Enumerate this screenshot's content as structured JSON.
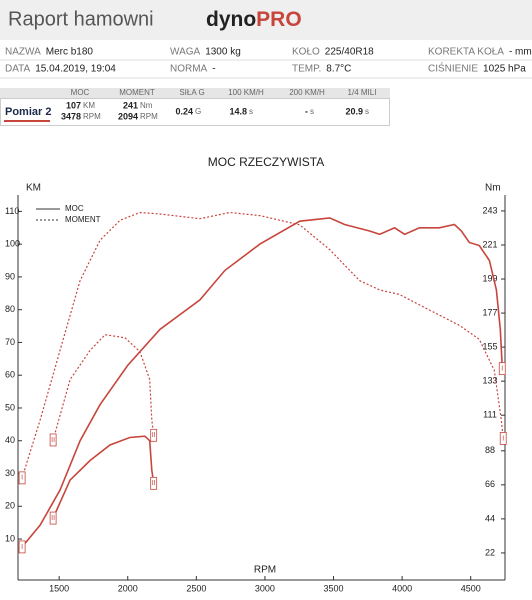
{
  "header": {
    "title": "Raport hamowni",
    "brand_a": "dyno",
    "brand_b": "PRO"
  },
  "info": {
    "rows": [
      [
        {
          "label": "NAZWA",
          "value": "Merc b180"
        },
        {
          "label": "WAGA",
          "value": "1300 kg"
        },
        {
          "label": "KOŁO",
          "value": "225/40R18"
        },
        {
          "label": "KOREKTA KOŁA",
          "value": "- mm"
        }
      ],
      [
        {
          "label": "DATA",
          "value": "15.04.2019, 19:04"
        },
        {
          "label": "NORMA",
          "value": "-"
        },
        {
          "label": "TEMP.",
          "value": "8.7°C"
        },
        {
          "label": "CIŚNIENIE",
          "value": "1025 hPa"
        }
      ]
    ]
  },
  "results": {
    "columns": [
      "MOC",
      "MOMENT",
      "SIŁA G",
      "100 KM/H",
      "200 KM/H",
      "1/4 MILI"
    ],
    "rows": [
      {
        "name": "Pomiar 2",
        "cells": [
          [
            {
              "v": "107",
              "u": "KM"
            },
            {
              "v": "3478",
              "u": "RPM"
            }
          ],
          [
            {
              "v": "241",
              "u": "Nm"
            },
            {
              "v": "2094",
              "u": "RPM"
            }
          ],
          [
            {
              "v": "0.24",
              "u": "G"
            }
          ],
          [
            {
              "v": "14.8",
              "u": "s"
            }
          ],
          [
            {
              "v": "-",
              "u": "s"
            }
          ],
          [
            {
              "v": "20.9",
              "u": "s"
            }
          ]
        ]
      }
    ]
  },
  "chart_data": {
    "type": "line",
    "title": "MOC RZECZYWISTA",
    "x_label": "RPM",
    "y_label": "KM",
    "y2_label": "Nm",
    "xlim": [
      1200,
      4750
    ],
    "xticks": [
      1500,
      2000,
      2500,
      3000,
      3500,
      4000,
      4500
    ],
    "ylim": [
      -2.5,
      115
    ],
    "yticks": [
      10,
      20,
      30,
      40,
      50,
      60,
      70,
      80,
      90,
      100,
      110
    ],
    "y2lim": [
      4.5,
      253.3
    ],
    "y2ticks": [
      22,
      44,
      66,
      88,
      111,
      133,
      155,
      177,
      199,
      221,
      243
    ],
    "grid": false,
    "legend": "top-left",
    "series": [
      {
        "name": "MOC",
        "run": "I",
        "dash": false,
        "axis": "y",
        "color": "#c8453c",
        "x": [
          1230,
          1362,
          1507,
          1653,
          1798,
          2000,
          2235,
          2526,
          2708,
          2963,
          3254,
          3472,
          3581,
          3763,
          3836,
          3945,
          4018,
          4127,
          4272,
          4381,
          4432,
          4490,
          4563,
          4636,
          4687,
          4716,
          4730
        ],
        "values": [
          7.6,
          14.3,
          25,
          40,
          51,
          63,
          74,
          83,
          92,
          100,
          107,
          108,
          106,
          104,
          103,
          105,
          103,
          105,
          105,
          106,
          104,
          100.5,
          99.6,
          95,
          86,
          74,
          62
        ]
      },
      {
        "name": "MOMENT",
        "run": "I",
        "dash": true,
        "axis": "y2",
        "color": "#c8453c",
        "x": [
          1230,
          1362,
          1507,
          1653,
          1798,
          1944,
          2089,
          2235,
          2526,
          2744,
          2963,
          3254,
          3472,
          3690,
          3836,
          3981,
          4199,
          4418,
          4563,
          4672,
          4723,
          4737
        ],
        "values": [
          70.5,
          108,
          153,
          198,
          224,
          237,
          242,
          241,
          238,
          242,
          240,
          234,
          218,
          198,
          192,
          189,
          179,
          169,
          160,
          140,
          108,
          96
        ]
      },
      {
        "name": "MOC",
        "run": "II",
        "dash": false,
        "axis": "y",
        "color": "#c8453c",
        "x": [
          1456,
          1580,
          1726,
          1871,
          2015,
          2124,
          2160,
          2175,
          2189
        ],
        "values": [
          16.4,
          28,
          34,
          38.7,
          41,
          41.4,
          40,
          31,
          27
        ]
      },
      {
        "name": "MOMENT",
        "run": "II",
        "dash": true,
        "axis": "y2",
        "color": "#c8453c",
        "x": [
          1456,
          1580,
          1726,
          1835,
          1980,
          2089,
          2160,
          2175,
          2189
        ],
        "values": [
          95,
          134,
          153,
          163,
          161,
          152,
          134,
          108,
          98
        ]
      }
    ]
  }
}
